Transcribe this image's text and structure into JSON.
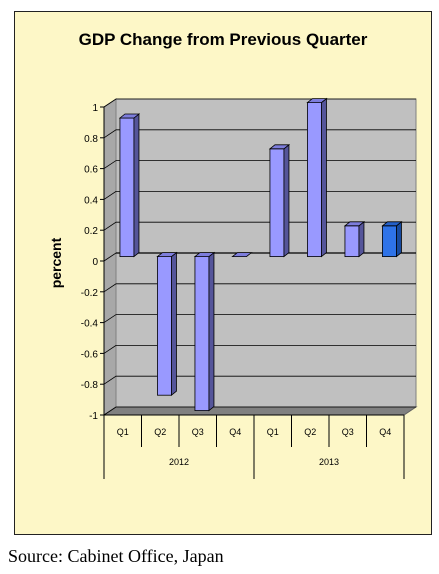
{
  "chart_data": {
    "type": "bar",
    "title": "GDP Change from Previous Quarter",
    "xlabel": "",
    "ylabel": "percent",
    "ylim": [
      -1,
      1
    ],
    "yticks": [
      "1",
      "0.8",
      "0.6",
      "0.4",
      "0.2",
      "0",
      "-0.2",
      "-0.4",
      "-0.6",
      "-0.8",
      "-1"
    ],
    "ytick_values": [
      1,
      0.8,
      0.6,
      0.4,
      0.2,
      0,
      -0.2,
      -0.4,
      -0.6,
      -0.8,
      -1
    ],
    "categories": [
      "Q1",
      "Q2",
      "Q3",
      "Q4",
      "Q1",
      "Q2",
      "Q3",
      "Q4"
    ],
    "groups": [
      {
        "label": "2012",
        "count": 4
      },
      {
        "label": "2013",
        "count": 4
      }
    ],
    "values": [
      0.9,
      -0.9,
      -1.0,
      0.0,
      0.7,
      1.0,
      0.2,
      0.2
    ],
    "grid": true,
    "legend": "none",
    "colors": {
      "bar": "#9999ff",
      "bar_side": "#55559a",
      "bar_top": "#7d7ddc",
      "bar_highlight": "#2e73e8",
      "bar_highlight_side": "#174a9e",
      "bar_highlight_top": "#2460c8",
      "plot_back": "#c0c0c0",
      "plot_floor": "#808080",
      "chart_background": "#fdf7c7"
    }
  },
  "source": "Source: Cabinet Office, Japan"
}
